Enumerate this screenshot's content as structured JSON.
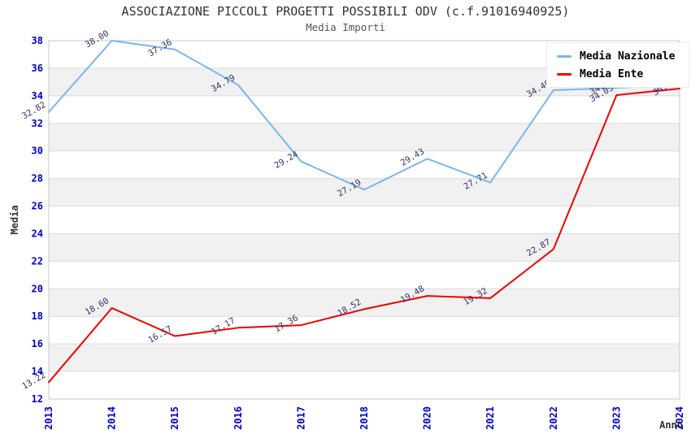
{
  "header": {
    "title": "ASSOCIAZIONE PICCOLI PROGETTI POSSIBILI ODV (c.f.91016940925)",
    "subtitle": "Media Importi"
  },
  "chart_data": {
    "type": "line",
    "categories": [
      "2013",
      "2014",
      "2015",
      "2016",
      "2017",
      "2018",
      "2020",
      "2021",
      "2022",
      "2023",
      "2024"
    ],
    "series": [
      {
        "name": "Media Nazionale",
        "color": "#7cb5ec",
        "values": [
          32.82,
          38.0,
          37.36,
          34.79,
          29.24,
          27.19,
          29.43,
          27.71,
          34.4,
          34.57,
          34.82
        ]
      },
      {
        "name": "Media Ente",
        "color": "#ee0000",
        "values": [
          13.22,
          18.6,
          16.57,
          17.17,
          17.36,
          18.52,
          19.48,
          19.32,
          22.87,
          34.05,
          34.52
        ]
      }
    ],
    "title": "ASSOCIAZIONE PICCOLI PROGETTI POSSIBILI ODV (c.f.91016940925)",
    "subtitle": "Media Importi",
    "xlabel": "Anno",
    "ylabel": "Media",
    "ylim": [
      12,
      38
    ],
    "ytick_step": 2,
    "grid": true,
    "band_color": "#f1f1f1",
    "grid_color": "#dcdcdc",
    "border_color": "#c9c9c9",
    "tick_color": "#0000cc",
    "label_color": "#333366",
    "legend_position": "top-right",
    "data_labels": true
  }
}
